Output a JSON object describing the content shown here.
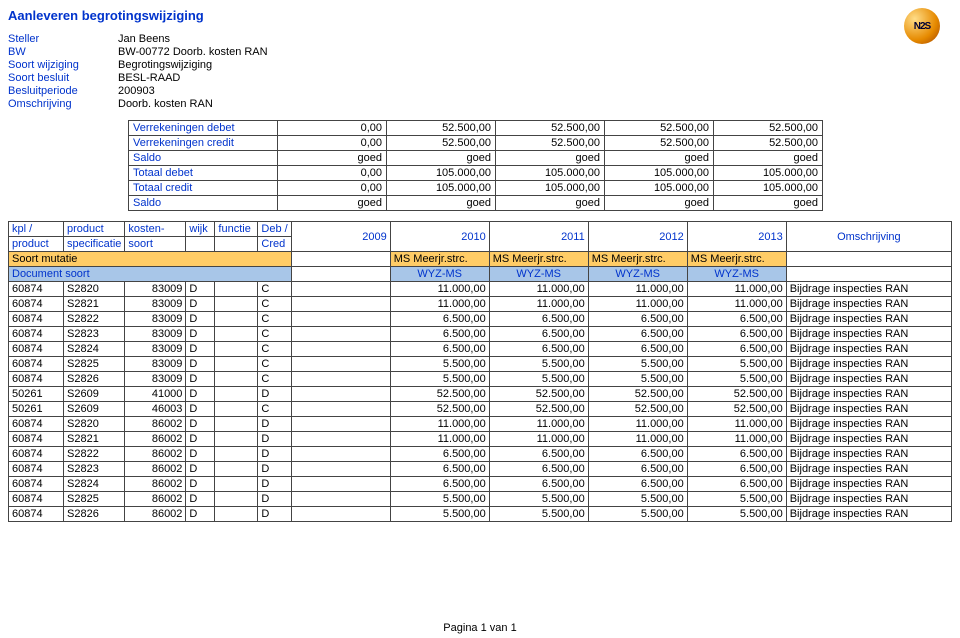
{
  "title": "Aanleveren begrotingswijziging",
  "logo": "N2S",
  "meta": {
    "labels": {
      "steller": "Steller",
      "bw": "BW",
      "soort_wijziging": "Soort wijziging",
      "soort_besluit": "Soort besluit",
      "besluitperiode": "Besluitperiode",
      "omschrijving": "Omschrijving"
    },
    "values": {
      "steller": "Jan Beens",
      "bw": "BW-00772   Doorb. kosten RAN",
      "soort_wijziging": "Begrotingswijziging",
      "soort_besluit": "BESL-RAAD",
      "besluitperiode": "200903",
      "omschrijving": "Doorb. kosten RAN"
    }
  },
  "summary": {
    "rows": [
      {
        "label": "Verrekeningen debet",
        "cells": [
          "0,00",
          "52.500,00",
          "52.500,00",
          "52.500,00",
          "52.500,00"
        ]
      },
      {
        "label": "Verrekeningen credit",
        "cells": [
          "0,00",
          "52.500,00",
          "52.500,00",
          "52.500,00",
          "52.500,00"
        ]
      },
      {
        "label": "Saldo",
        "cells": [
          "goed",
          "goed",
          "goed",
          "goed",
          "goed"
        ]
      },
      {
        "label": "Totaal debet",
        "cells": [
          "0,00",
          "105.000,00",
          "105.000,00",
          "105.000,00",
          "105.000,00"
        ]
      },
      {
        "label": "Totaal credit",
        "cells": [
          "0,00",
          "105.000,00",
          "105.000,00",
          "105.000,00",
          "105.000,00"
        ]
      },
      {
        "label": "Saldo",
        "cells": [
          "goed",
          "goed",
          "goed",
          "goed",
          "goed"
        ]
      }
    ]
  },
  "detail_header": {
    "top": {
      "kpl": "kpl /",
      "product": "product",
      "kosten": "kosten-",
      "wijk": "wijk",
      "functie": "functie",
      "debcred": "Deb /"
    },
    "bottom": {
      "kpl": "product",
      "product": "specificatie",
      "kosten": "soort",
      "debcred": "Cred"
    },
    "years": [
      "2009",
      "2010",
      "2011",
      "2012",
      "2013"
    ],
    "omschrijving": "Omschrijving"
  },
  "soort_mutatie": {
    "label": "Soort mutatie",
    "cells": [
      "MS Meerjr.strc.",
      "MS Meerjr.strc.",
      "MS Meerjr.strc.",
      "MS Meerjr.strc."
    ]
  },
  "document_soort": {
    "label": "Document soort",
    "cells": [
      "WYZ-MS",
      "WYZ-MS",
      "WYZ-MS",
      "WYZ-MS"
    ]
  },
  "rows": [
    {
      "c": [
        "60874",
        "S2820",
        "83009",
        "D",
        "",
        "C",
        "11.000,00",
        "11.000,00",
        "11.000,00",
        "11.000,00",
        "Bijdrage inspecties RAN"
      ]
    },
    {
      "c": [
        "60874",
        "S2821",
        "83009",
        "D",
        "",
        "C",
        "11.000,00",
        "11.000,00",
        "11.000,00",
        "11.000,00",
        "Bijdrage inspecties RAN"
      ]
    },
    {
      "c": [
        "60874",
        "S2822",
        "83009",
        "D",
        "",
        "C",
        "6.500,00",
        "6.500,00",
        "6.500,00",
        "6.500,00",
        "Bijdrage inspecties RAN"
      ]
    },
    {
      "c": [
        "60874",
        "S2823",
        "83009",
        "D",
        "",
        "C",
        "6.500,00",
        "6.500,00",
        "6.500,00",
        "6.500,00",
        "Bijdrage inspecties RAN"
      ]
    },
    {
      "c": [
        "60874",
        "S2824",
        "83009",
        "D",
        "",
        "C",
        "6.500,00",
        "6.500,00",
        "6.500,00",
        "6.500,00",
        "Bijdrage inspecties RAN"
      ]
    },
    {
      "c": [
        "60874",
        "S2825",
        "83009",
        "D",
        "",
        "C",
        "5.500,00",
        "5.500,00",
        "5.500,00",
        "5.500,00",
        "Bijdrage inspecties RAN"
      ]
    },
    {
      "c": [
        "60874",
        "S2826",
        "83009",
        "D",
        "",
        "C",
        "5.500,00",
        "5.500,00",
        "5.500,00",
        "5.500,00",
        "Bijdrage inspecties RAN"
      ]
    },
    {
      "c": [
        "50261",
        "S2609",
        "41000",
        "D",
        "",
        "D",
        "52.500,00",
        "52.500,00",
        "52.500,00",
        "52.500,00",
        "Bijdrage inspecties RAN"
      ]
    },
    {
      "c": [
        "50261",
        "S2609",
        "46003",
        "D",
        "",
        "C",
        "52.500,00",
        "52.500,00",
        "52.500,00",
        "52.500,00",
        "Bijdrage inspecties RAN"
      ]
    },
    {
      "c": [
        "60874",
        "S2820",
        "86002",
        "D",
        "",
        "D",
        "11.000,00",
        "11.000,00",
        "11.000,00",
        "11.000,00",
        "Bijdrage inspecties RAN"
      ]
    },
    {
      "c": [
        "60874",
        "S2821",
        "86002",
        "D",
        "",
        "D",
        "11.000,00",
        "11.000,00",
        "11.000,00",
        "11.000,00",
        "Bijdrage inspecties RAN"
      ]
    },
    {
      "c": [
        "60874",
        "S2822",
        "86002",
        "D",
        "",
        "D",
        "6.500,00",
        "6.500,00",
        "6.500,00",
        "6.500,00",
        "Bijdrage inspecties RAN"
      ]
    },
    {
      "c": [
        "60874",
        "S2823",
        "86002",
        "D",
        "",
        "D",
        "6.500,00",
        "6.500,00",
        "6.500,00",
        "6.500,00",
        "Bijdrage inspecties RAN"
      ]
    },
    {
      "c": [
        "60874",
        "S2824",
        "86002",
        "D",
        "",
        "D",
        "6.500,00",
        "6.500,00",
        "6.500,00",
        "6.500,00",
        "Bijdrage inspecties RAN"
      ]
    },
    {
      "c": [
        "60874",
        "S2825",
        "86002",
        "D",
        "",
        "D",
        "5.500,00",
        "5.500,00",
        "5.500,00",
        "5.500,00",
        "Bijdrage inspecties RAN"
      ]
    },
    {
      "c": [
        "60874",
        "S2826",
        "86002",
        "D",
        "",
        "D",
        "5.500,00",
        "5.500,00",
        "5.500,00",
        "5.500,00",
        "Bijdrage inspecties RAN"
      ]
    }
  ],
  "footer": "Pagina 1 van 1",
  "colors": {
    "primary": "#0033cc",
    "orange": "#ffcc66",
    "blue": "#a8c6e8",
    "border": "#444444"
  }
}
